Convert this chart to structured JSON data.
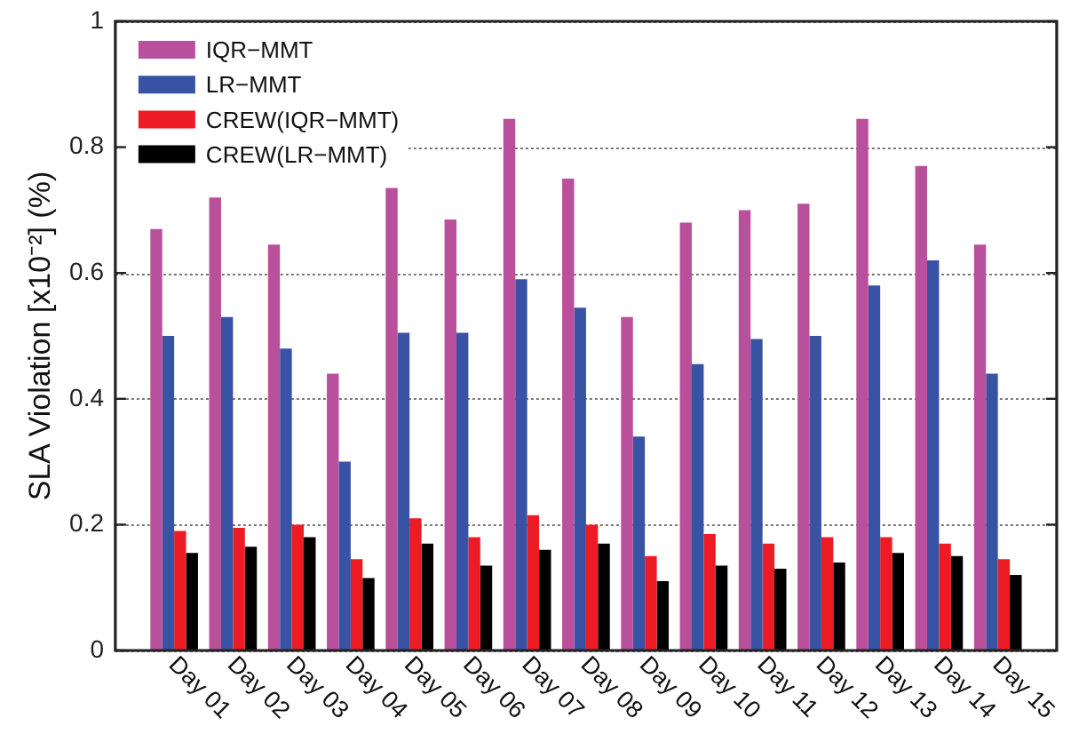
{
  "chart_data": {
    "type": "bar",
    "ylabel": "SLA Violation [x10⁻²] (%)",
    "categories": [
      "Day 01",
      "Day 02",
      "Day 03",
      "Day 04",
      "Day 05",
      "Day 06",
      "Day 07",
      "Day 08",
      "Day 09",
      "Day 10",
      "Day 11",
      "Day 12",
      "Day 13",
      "Day 14",
      "Day 15"
    ],
    "series": [
      {
        "name": "IQR−MMT",
        "color": "#b9509b",
        "values": [
          0.67,
          0.72,
          0.645,
          0.44,
          0.735,
          0.685,
          0.845,
          0.75,
          0.53,
          0.68,
          0.7,
          0.71,
          0.845,
          0.77,
          0.645
        ]
      },
      {
        "name": "LR−MMT",
        "color": "#3953a4",
        "values": [
          0.5,
          0.53,
          0.48,
          0.3,
          0.505,
          0.505,
          0.59,
          0.545,
          0.34,
          0.455,
          0.495,
          0.5,
          0.58,
          0.62,
          0.44
        ]
      },
      {
        "name": "CREW(IQR−MMT)",
        "color": "#ed1c24",
        "values": [
          0.19,
          0.195,
          0.2,
          0.145,
          0.21,
          0.18,
          0.215,
          0.2,
          0.15,
          0.185,
          0.17,
          0.18,
          0.18,
          0.17,
          0.145
        ]
      },
      {
        "name": "CREW(LR−MMT)",
        "color": "#000000",
        "values": [
          0.155,
          0.165,
          0.18,
          0.115,
          0.17,
          0.135,
          0.16,
          0.17,
          0.11,
          0.135,
          0.13,
          0.14,
          0.155,
          0.15,
          0.12
        ]
      }
    ],
    "ylim": [
      0,
      1
    ],
    "yticks": [
      0,
      0.2,
      0.4,
      0.6,
      0.8,
      1
    ],
    "grid": "y",
    "legend": "top left"
  }
}
